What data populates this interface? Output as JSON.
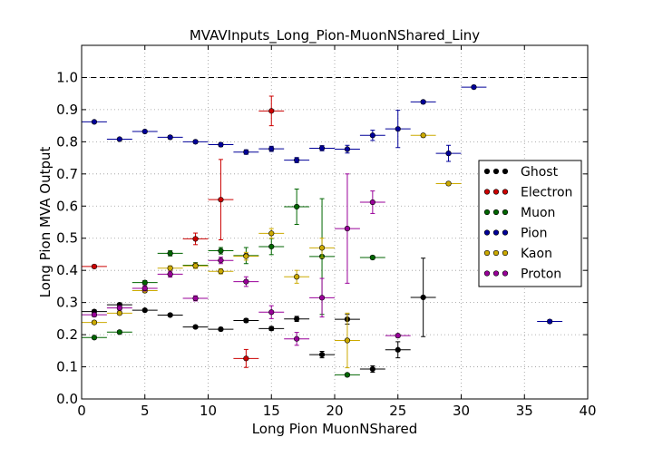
{
  "chart_data": {
    "type": "scatter",
    "title": "MVAVInputs_Long_Pion-MuonNShared_Liny",
    "xlabel": "Long Pion MuonNShared",
    "ylabel": "Long Pion MVA Output",
    "xlim": [
      0,
      40
    ],
    "ylim": [
      0,
      1.1
    ],
    "xticks": [
      "0",
      "5",
      "10",
      "15",
      "20",
      "25",
      "30",
      "35",
      "40"
    ],
    "yticks": [
      "0.0",
      "0.1",
      "0.2",
      "0.3",
      "0.4",
      "0.5",
      "0.6",
      "0.7",
      "0.8",
      "0.9",
      "1.0"
    ],
    "grid": true,
    "reference_line_y": 1.0,
    "legend_position": "right",
    "series": [
      {
        "name": "Ghost",
        "color": "#000000",
        "points": [
          {
            "x": 1,
            "y": 0.272,
            "err": 0.005
          },
          {
            "x": 3,
            "y": 0.293,
            "err": 0.005
          },
          {
            "x": 5,
            "y": 0.276,
            "err": 0.004
          },
          {
            "x": 7,
            "y": 0.261,
            "err": 0.004
          },
          {
            "x": 9,
            "y": 0.224,
            "err": 0.004
          },
          {
            "x": 11,
            "y": 0.217,
            "err": 0.005
          },
          {
            "x": 13,
            "y": 0.244,
            "err": 0.006
          },
          {
            "x": 15,
            "y": 0.219,
            "err": 0.006
          },
          {
            "x": 17,
            "y": 0.249,
            "err": 0.008
          },
          {
            "x": 19,
            "y": 0.138,
            "err": 0.01
          },
          {
            "x": 21,
            "y": 0.248,
            "err": 0.015
          },
          {
            "x": 23,
            "y": 0.093,
            "err": 0.01
          },
          {
            "x": 25,
            "y": 0.153,
            "err": 0.025
          },
          {
            "x": 27,
            "y": 0.316,
            "err": 0.122
          }
        ]
      },
      {
        "name": "Electron",
        "color": "#cc0000",
        "points": [
          {
            "x": 1,
            "y": 0.412,
            "err": 0.005
          },
          {
            "x": 9,
            "y": 0.498,
            "err": 0.018
          },
          {
            "x": 11,
            "y": 0.62,
            "err": 0.125
          },
          {
            "x": 13,
            "y": 0.126,
            "err": 0.028
          },
          {
            "x": 15,
            "y": 0.896,
            "err": 0.046
          }
        ]
      },
      {
        "name": "Muon",
        "color": "#006600",
        "points": [
          {
            "x": 1,
            "y": 0.191,
            "err": 0.004
          },
          {
            "x": 3,
            "y": 0.208,
            "err": 0.005
          },
          {
            "x": 5,
            "y": 0.362,
            "err": 0.006
          },
          {
            "x": 7,
            "y": 0.453,
            "err": 0.008
          },
          {
            "x": 9,
            "y": 0.416,
            "err": 0.008
          },
          {
            "x": 11,
            "y": 0.461,
            "err": 0.01
          },
          {
            "x": 13,
            "y": 0.446,
            "err": 0.025
          },
          {
            "x": 15,
            "y": 0.474,
            "err": 0.025
          },
          {
            "x": 17,
            "y": 0.598,
            "err": 0.055
          },
          {
            "x": 19,
            "y": 0.443,
            "err": 0.18
          },
          {
            "x": 21,
            "y": 0.075,
            "err": 0.005
          },
          {
            "x": 23,
            "y": 0.44,
            "err": 0.005
          }
        ]
      },
      {
        "name": "Pion",
        "color": "#000099",
        "points": [
          {
            "x": 1,
            "y": 0.862,
            "err": 0.003
          },
          {
            "x": 3,
            "y": 0.808,
            "err": 0.004
          },
          {
            "x": 5,
            "y": 0.832,
            "err": 0.004
          },
          {
            "x": 7,
            "y": 0.814,
            "err": 0.005
          },
          {
            "x": 9,
            "y": 0.8,
            "err": 0.005
          },
          {
            "x": 11,
            "y": 0.791,
            "err": 0.006
          },
          {
            "x": 13,
            "y": 0.768,
            "err": 0.007
          },
          {
            "x": 15,
            "y": 0.778,
            "err": 0.008
          },
          {
            "x": 17,
            "y": 0.743,
            "err": 0.008
          },
          {
            "x": 19,
            "y": 0.78,
            "err": 0.008
          },
          {
            "x": 21,
            "y": 0.777,
            "err": 0.012
          },
          {
            "x": 23,
            "y": 0.82,
            "err": 0.016
          },
          {
            "x": 25,
            "y": 0.84,
            "err": 0.058
          },
          {
            "x": 27,
            "y": 0.924,
            "err": 0.005
          },
          {
            "x": 29,
            "y": 0.764,
            "err": 0.025
          },
          {
            "x": 31,
            "y": 0.97,
            "err": 0.005
          },
          {
            "x": 37,
            "y": 0.241,
            "err": 0.005
          }
        ]
      },
      {
        "name": "Kaon",
        "color": "#ccaa00",
        "points": [
          {
            "x": 1,
            "y": 0.238,
            "err": 0.005
          },
          {
            "x": 3,
            "y": 0.267,
            "err": 0.005
          },
          {
            "x": 5,
            "y": 0.337,
            "err": 0.006
          },
          {
            "x": 7,
            "y": 0.407,
            "err": 0.007
          },
          {
            "x": 9,
            "y": 0.414,
            "err": 0.008
          },
          {
            "x": 11,
            "y": 0.397,
            "err": 0.008
          },
          {
            "x": 13,
            "y": 0.444,
            "err": 0.012
          },
          {
            "x": 15,
            "y": 0.515,
            "err": 0.015
          },
          {
            "x": 17,
            "y": 0.38,
            "err": 0.02
          },
          {
            "x": 19,
            "y": 0.47,
            "err": 0.03
          },
          {
            "x": 21,
            "y": 0.182,
            "err": 0.085
          },
          {
            "x": 27,
            "y": 0.82,
            "err": 0.005
          },
          {
            "x": 29,
            "y": 0.67,
            "err": 0.005
          }
        ]
      },
      {
        "name": "Proton",
        "color": "#990099",
        "points": [
          {
            "x": 1,
            "y": 0.262,
            "err": 0.006
          },
          {
            "x": 3,
            "y": 0.283,
            "err": 0.007
          },
          {
            "x": 5,
            "y": 0.344,
            "err": 0.008
          },
          {
            "x": 7,
            "y": 0.388,
            "err": 0.009
          },
          {
            "x": 9,
            "y": 0.313,
            "err": 0.008
          },
          {
            "x": 11,
            "y": 0.431,
            "err": 0.01
          },
          {
            "x": 13,
            "y": 0.365,
            "err": 0.015
          },
          {
            "x": 15,
            "y": 0.27,
            "err": 0.02
          },
          {
            "x": 17,
            "y": 0.187,
            "err": 0.02
          },
          {
            "x": 19,
            "y": 0.315,
            "err": 0.06
          },
          {
            "x": 21,
            "y": 0.53,
            "err": 0.17
          },
          {
            "x": 23,
            "y": 0.612,
            "err": 0.035
          },
          {
            "x": 25,
            "y": 0.197,
            "err": 0.005
          }
        ]
      }
    ]
  }
}
